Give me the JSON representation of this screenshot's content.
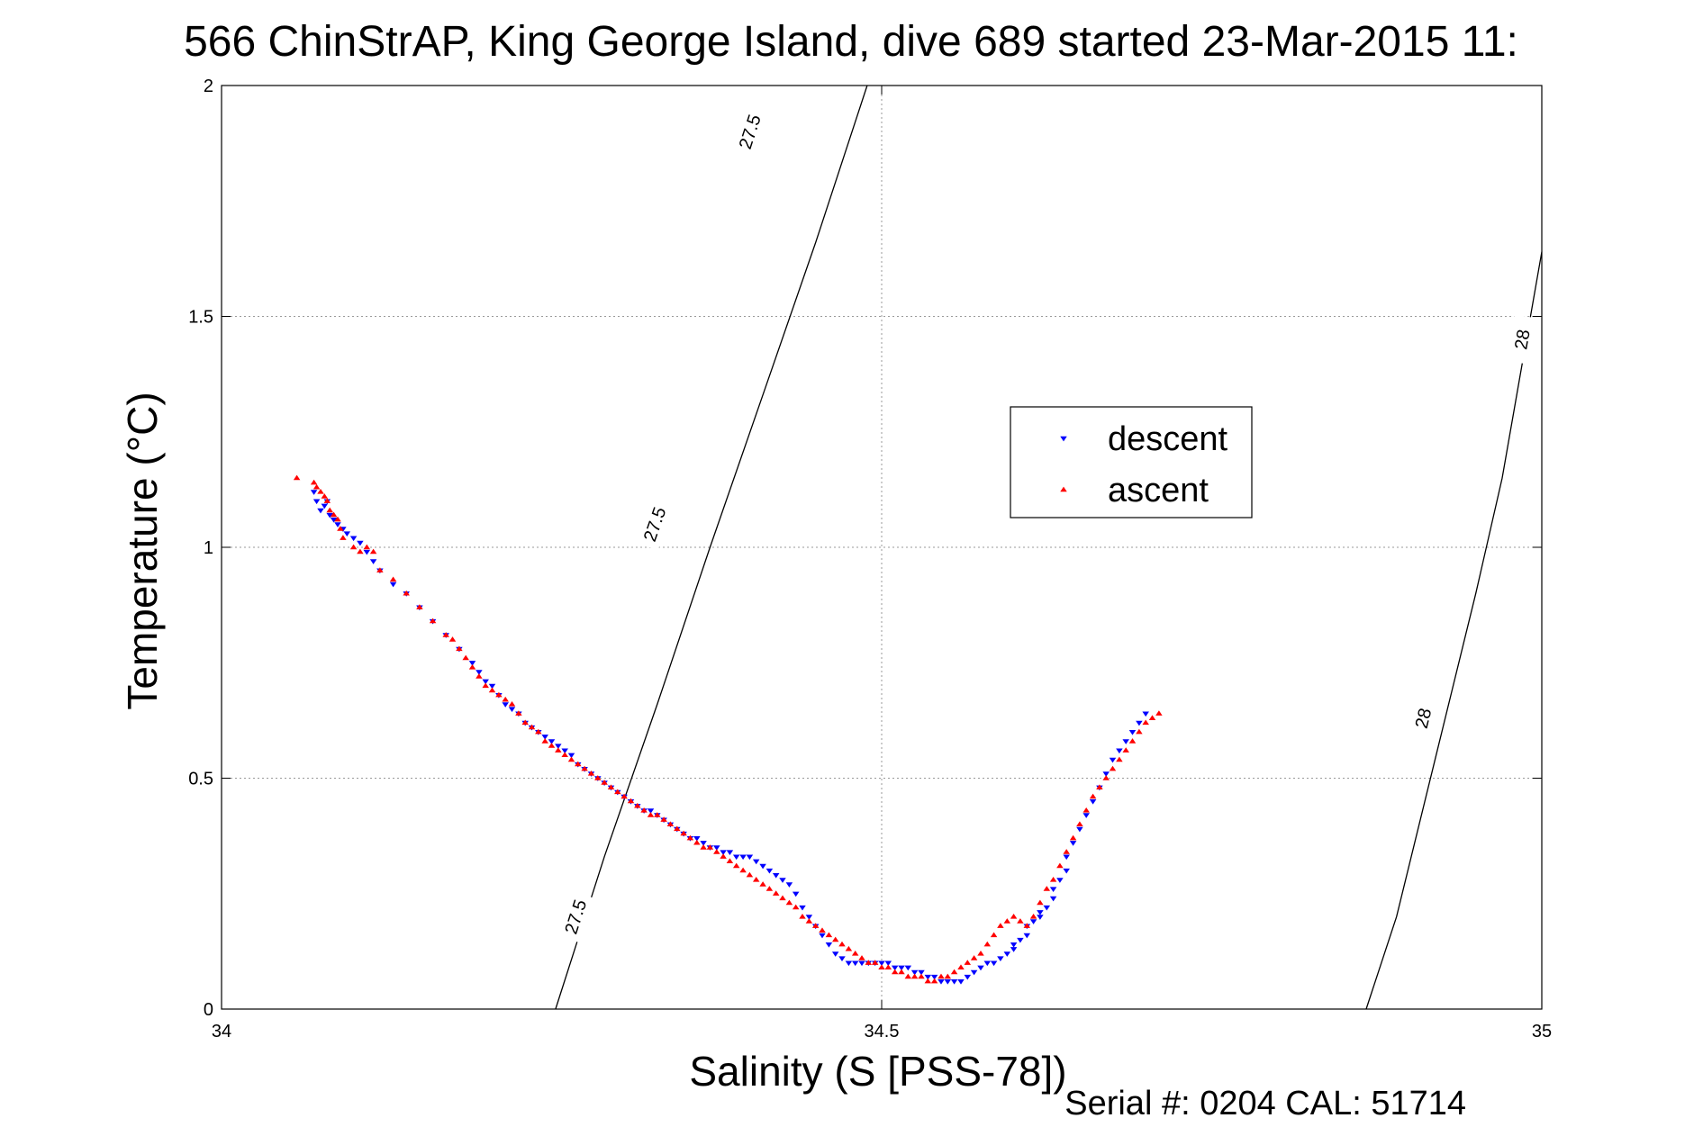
{
  "chart_data": {
    "type": "scatter",
    "title": "566 ChinStrAP, King George Island, dive 689 started 23-Mar-2015 11:",
    "xlabel": "Salinity (S [PSS-78])",
    "ylabel": "Temperature (°C)",
    "xlim": [
      34,
      35
    ],
    "ylim": [
      0,
      2
    ],
    "x_ticks": [
      34,
      34.5,
      35
    ],
    "x_tick_labels": [
      "34",
      "34.5",
      "35"
    ],
    "y_ticks": [
      0,
      0.5,
      1,
      1.5,
      2
    ],
    "y_tick_labels": [
      "0",
      "0.5",
      "1",
      "1.5",
      "2"
    ],
    "grid": true,
    "legend_position": "upper-right",
    "density_contours": [
      {
        "value": "27.5",
        "x": [
          34.253,
          34.29,
          34.33,
          34.37,
          34.41,
          34.45,
          34.489
        ],
        "y": [
          0,
          0.33,
          0.66,
          1.0,
          1.33,
          1.66,
          2.0
        ],
        "labels": [
          {
            "text": "27.5",
            "x": 34.268,
            "y": 0.2
          },
          {
            "text": "27.5",
            "x": 34.328,
            "y": 1.05
          },
          {
            "text": "27.5",
            "x": 34.4,
            "y": 1.9
          }
        ]
      },
      {
        "value": "28",
        "x": [
          34.867,
          34.89,
          34.92,
          34.95,
          34.97,
          35.0
        ],
        "y": [
          0,
          0.2,
          0.55,
          0.9,
          1.15,
          1.64
        ],
        "labels": [
          {
            "text": "28",
            "x": 34.91,
            "y": 0.63
          },
          {
            "text": "28",
            "x": 34.985,
            "y": 1.45
          }
        ]
      }
    ],
    "series": [
      {
        "name": "descent",
        "color": "#0000ff",
        "marker": "triangle-down",
        "x": [
          34.07,
          34.072,
          34.075,
          34.078,
          34.08,
          34.082,
          34.085,
          34.088,
          34.092,
          34.095,
          34.1,
          34.105,
          34.11,
          34.115,
          34.12,
          34.13,
          34.14,
          34.15,
          34.16,
          34.17,
          34.18,
          34.19,
          34.195,
          34.2,
          34.205,
          34.21,
          34.215,
          34.22,
          34.225,
          34.23,
          34.235,
          34.24,
          34.245,
          34.25,
          34.255,
          34.26,
          34.265,
          34.27,
          34.275,
          34.28,
          34.285,
          34.29,
          34.295,
          34.3,
          34.305,
          34.31,
          34.315,
          34.32,
          34.325,
          34.33,
          34.335,
          34.34,
          34.345,
          34.35,
          34.355,
          34.36,
          34.365,
          34.37,
          34.375,
          34.38,
          34.385,
          34.39,
          34.395,
          34.4,
          34.405,
          34.41,
          34.415,
          34.42,
          34.425,
          34.43,
          34.435,
          34.44,
          34.445,
          34.45,
          34.455,
          34.46,
          34.465,
          34.47,
          34.475,
          34.48,
          34.485,
          34.49,
          34.495,
          34.5,
          34.505,
          34.51,
          34.515,
          34.52,
          34.525,
          34.53,
          34.535,
          34.54,
          34.545,
          34.55,
          34.555,
          34.56,
          34.565,
          34.57,
          34.575,
          34.58,
          34.585,
          34.59,
          34.595,
          34.6,
          34.6,
          34.605,
          34.61,
          34.61,
          34.615,
          34.62,
          34.62,
          34.625,
          34.63,
          34.63,
          34.635,
          34.64,
          34.64,
          34.645,
          34.65,
          34.655,
          34.66,
          34.665,
          34.67,
          34.675,
          34.68,
          34.685,
          34.69,
          34.695,
          34.7
        ],
        "y": [
          1.12,
          1.1,
          1.08,
          1.09,
          1.1,
          1.07,
          1.06,
          1.05,
          1.04,
          1.03,
          1.02,
          1.01,
          0.99,
          0.97,
          0.95,
          0.92,
          0.9,
          0.87,
          0.84,
          0.81,
          0.78,
          0.75,
          0.73,
          0.71,
          0.7,
          0.68,
          0.66,
          0.65,
          0.64,
          0.62,
          0.61,
          0.6,
          0.59,
          0.58,
          0.57,
          0.56,
          0.55,
          0.53,
          0.52,
          0.51,
          0.5,
          0.49,
          0.48,
          0.47,
          0.46,
          0.45,
          0.44,
          0.43,
          0.43,
          0.42,
          0.41,
          0.4,
          0.39,
          0.38,
          0.37,
          0.37,
          0.36,
          0.35,
          0.35,
          0.34,
          0.34,
          0.33,
          0.33,
          0.33,
          0.32,
          0.31,
          0.3,
          0.29,
          0.28,
          0.27,
          0.25,
          0.22,
          0.2,
          0.18,
          0.16,
          0.14,
          0.12,
          0.11,
          0.1,
          0.1,
          0.1,
          0.1,
          0.1,
          0.1,
          0.1,
          0.09,
          0.09,
          0.09,
          0.08,
          0.08,
          0.07,
          0.07,
          0.06,
          0.06,
          0.06,
          0.06,
          0.07,
          0.08,
          0.09,
          0.1,
          0.1,
          0.11,
          0.12,
          0.13,
          0.14,
          0.15,
          0.16,
          0.18,
          0.19,
          0.2,
          0.21,
          0.22,
          0.24,
          0.26,
          0.28,
          0.3,
          0.33,
          0.36,
          0.39,
          0.42,
          0.45,
          0.48,
          0.51,
          0.54,
          0.56,
          0.58,
          0.6,
          0.62,
          0.64
        ]
      },
      {
        "name": "ascent",
        "color": "#ff0000",
        "marker": "triangle-up",
        "x": [
          34.057,
          34.07,
          34.072,
          34.075,
          34.078,
          34.08,
          34.082,
          34.085,
          34.088,
          34.09,
          34.092,
          34.1,
          34.105,
          34.11,
          34.115,
          34.12,
          34.13,
          34.14,
          34.15,
          34.16,
          34.17,
          34.175,
          34.18,
          34.185,
          34.19,
          34.195,
          34.2,
          34.205,
          34.21,
          34.215,
          34.22,
          34.225,
          34.23,
          34.235,
          34.24,
          34.245,
          34.25,
          34.255,
          34.26,
          34.265,
          34.27,
          34.275,
          34.28,
          34.285,
          34.29,
          34.295,
          34.3,
          34.305,
          34.31,
          34.315,
          34.32,
          34.325,
          34.33,
          34.335,
          34.34,
          34.345,
          34.35,
          34.355,
          34.36,
          34.365,
          34.37,
          34.375,
          34.38,
          34.385,
          34.39,
          34.395,
          34.4,
          34.405,
          34.41,
          34.415,
          34.42,
          34.425,
          34.43,
          34.435,
          34.44,
          34.445,
          34.45,
          34.455,
          34.46,
          34.465,
          34.47,
          34.475,
          34.48,
          34.485,
          34.49,
          34.495,
          34.5,
          34.505,
          34.51,
          34.515,
          34.52,
          34.525,
          34.53,
          34.535,
          34.54,
          34.545,
          34.55,
          34.555,
          34.56,
          34.565,
          34.57,
          34.575,
          34.58,
          34.585,
          34.59,
          34.595,
          34.6,
          34.605,
          34.61,
          34.615,
          34.62,
          34.625,
          34.63,
          34.635,
          34.64,
          34.645,
          34.65,
          34.655,
          34.66,
          34.665,
          34.67,
          34.675,
          34.68,
          34.685,
          34.69,
          34.695,
          34.7,
          34.705,
          34.71
        ],
        "y": [
          1.15,
          1.14,
          1.13,
          1.12,
          1.11,
          1.1,
          1.08,
          1.07,
          1.06,
          1.04,
          1.02,
          1.0,
          0.99,
          1.0,
          0.99,
          0.95,
          0.93,
          0.9,
          0.87,
          0.84,
          0.81,
          0.8,
          0.78,
          0.76,
          0.74,
          0.72,
          0.7,
          0.69,
          0.68,
          0.67,
          0.66,
          0.64,
          0.62,
          0.61,
          0.6,
          0.58,
          0.57,
          0.56,
          0.55,
          0.54,
          0.53,
          0.52,
          0.51,
          0.5,
          0.49,
          0.48,
          0.47,
          0.46,
          0.45,
          0.44,
          0.43,
          0.42,
          0.42,
          0.41,
          0.4,
          0.39,
          0.38,
          0.37,
          0.36,
          0.35,
          0.35,
          0.34,
          0.33,
          0.32,
          0.31,
          0.3,
          0.29,
          0.28,
          0.27,
          0.26,
          0.25,
          0.24,
          0.23,
          0.22,
          0.2,
          0.19,
          0.18,
          0.17,
          0.16,
          0.15,
          0.14,
          0.13,
          0.12,
          0.11,
          0.1,
          0.1,
          0.09,
          0.09,
          0.08,
          0.08,
          0.07,
          0.07,
          0.07,
          0.06,
          0.06,
          0.07,
          0.07,
          0.08,
          0.09,
          0.1,
          0.11,
          0.12,
          0.14,
          0.16,
          0.18,
          0.19,
          0.2,
          0.19,
          0.18,
          0.2,
          0.23,
          0.26,
          0.28,
          0.31,
          0.34,
          0.37,
          0.4,
          0.43,
          0.46,
          0.48,
          0.5,
          0.52,
          0.54,
          0.56,
          0.58,
          0.6,
          0.62,
          0.63,
          0.64
        ]
      }
    ]
  },
  "footer": {
    "serial_text": "Serial #: 0204  CAL: 51714"
  }
}
